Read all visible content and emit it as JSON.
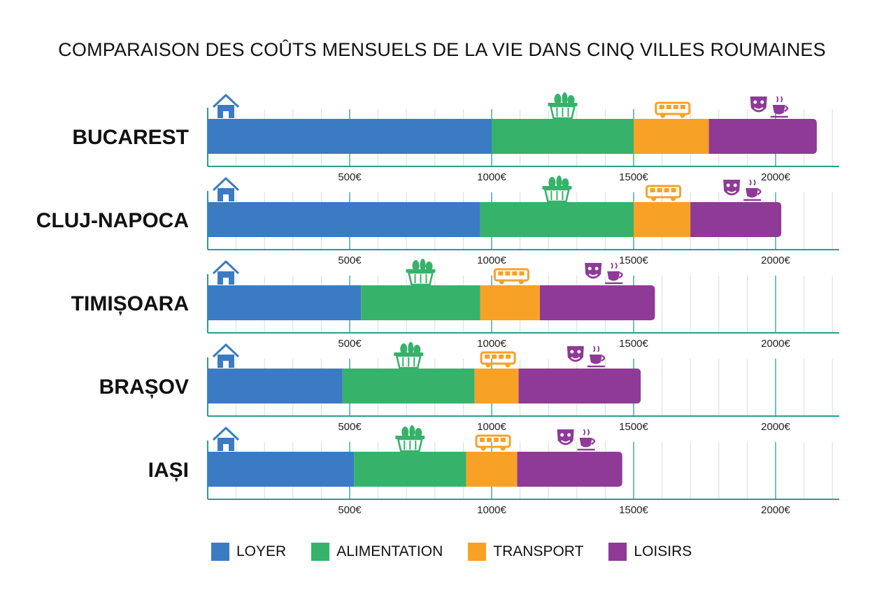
{
  "title": "COMPARAISON DES COÛTS MENSUELS DE LA VIE DANS CINQ VILLES ROUMAINES",
  "chart_data": {
    "type": "bar",
    "orientation": "horizontal",
    "stacked": true,
    "title": "COMPARAISON DES COÛTS MENSUELS DE LA VIE DANS CINQ VILLES ROUMAINES",
    "categories": [
      "BUCAREST",
      "CLUJ-NAPOCA",
      "TIMIȘOARA",
      "BRAȘOV",
      "IAȘI"
    ],
    "series": [
      {
        "name": "LOYER",
        "color": "#3b7bc4",
        "icon": "house-icon",
        "values": [
          1000,
          960,
          540,
          475,
          515
        ]
      },
      {
        "name": "ALIMENTATION",
        "color": "#36b26b",
        "icon": "basket-icon",
        "values": [
          500,
          540,
          420,
          465,
          395
        ]
      },
      {
        "name": "TRANSPORT",
        "color": "#f7a127",
        "icon": "bus-icon",
        "values": [
          265,
          200,
          210,
          155,
          180
        ]
      },
      {
        "name": "LOISIRS",
        "color": "#8e3a96",
        "icon": "theater-coffee-icon",
        "values": [
          380,
          320,
          405,
          430,
          370
        ]
      }
    ],
    "xlim": [
      0,
      2220
    ],
    "xticks": [
      500,
      1000,
      1500,
      2000
    ],
    "xtick_labels": [
      "500€",
      "1000€",
      "1500€",
      "2000€"
    ],
    "grid": true,
    "legend_position": "bottom"
  }
}
